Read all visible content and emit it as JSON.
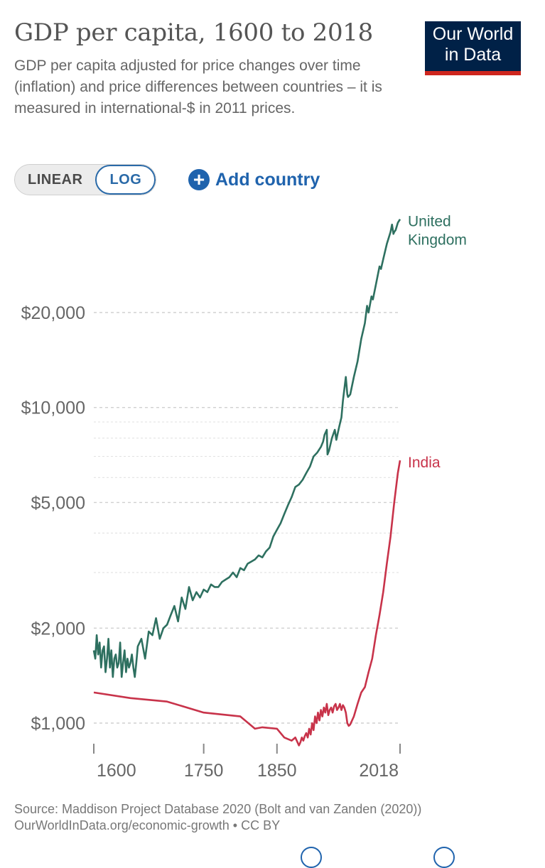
{
  "header": {
    "title": "GDP per capita, 1600 to 2018",
    "subtitle": "GDP per capita adjusted for price changes over time (inflation) and price differences between countries – it is measured in international-$ in 2011 prices.",
    "logo_line1": "Our World",
    "logo_line2": "in Data"
  },
  "controls": {
    "linear_label": "LINEAR",
    "log_label": "LOG",
    "active_scale": "LOG",
    "add_country_label": "Add country",
    "add_icon": "plus-circle-icon"
  },
  "colors": {
    "uk": "#2e7060",
    "india": "#c8334a",
    "accent": "#1f63ad",
    "logo_bg": "#002147",
    "logo_bar": "#ce261e"
  },
  "chart_data": {
    "type": "line",
    "title": "GDP per capita, 1600 to 2018",
    "xlabel": "",
    "ylabel": "",
    "y_scale": "log",
    "xlim": [
      1600,
      2018
    ],
    "ylim": [
      850,
      42000
    ],
    "x_ticks": [
      1600,
      1750,
      1850,
      2018
    ],
    "x_tick_labels": [
      "1600",
      "1750",
      "1850",
      "2018"
    ],
    "y_ticks": [
      1000,
      2000,
      5000,
      10000,
      20000
    ],
    "y_tick_labels": [
      "$1,000",
      "$2,000",
      "$5,000",
      "$10,000",
      "$20,000"
    ],
    "minor_gridlines": [
      3000,
      4000,
      6000,
      7000,
      8000,
      9000
    ],
    "legend": "end-of-line labels",
    "series": [
      {
        "name": "United Kingdom",
        "label_lines": [
          "United",
          "Kingdom"
        ],
        "x": [
          1600,
          1602,
          1604,
          1606,
          1608,
          1610,
          1612,
          1614,
          1616,
          1618,
          1620,
          1622,
          1624,
          1626,
          1628,
          1630,
          1632,
          1634,
          1636,
          1638,
          1640,
          1642,
          1644,
          1646,
          1648,
          1650,
          1652,
          1654,
          1656,
          1658,
          1660,
          1665,
          1670,
          1675,
          1680,
          1685,
          1690,
          1695,
          1700,
          1705,
          1710,
          1715,
          1720,
          1725,
          1730,
          1735,
          1740,
          1745,
          1750,
          1755,
          1760,
          1765,
          1770,
          1775,
          1780,
          1785,
          1790,
          1795,
          1800,
          1805,
          1810,
          1815,
          1820,
          1825,
          1830,
          1835,
          1840,
          1845,
          1850,
          1855,
          1860,
          1865,
          1870,
          1875,
          1880,
          1885,
          1890,
          1895,
          1900,
          1905,
          1910,
          1913,
          1915,
          1918,
          1919,
          1921,
          1925,
          1929,
          1931,
          1935,
          1938,
          1940,
          1943,
          1944,
          1946,
          1947,
          1950,
          1955,
          1960,
          1965,
          1970,
          1973,
          1975,
          1979,
          1981,
          1985,
          1990,
          1992,
          1995,
          2000,
          2005,
          2007,
          2009,
          2010,
          2012,
          2015,
          2018
        ],
        "values": [
          1700,
          1600,
          1900,
          1650,
          1800,
          1500,
          1700,
          1750,
          1450,
          1600,
          1850,
          1500,
          1700,
          1400,
          1600,
          1650,
          1500,
          1550,
          1800,
          1400,
          1550,
          1700,
          1450,
          1600,
          1500,
          1550,
          1650,
          1500,
          1400,
          1550,
          1750,
          1850,
          1600,
          1950,
          1900,
          2150,
          1850,
          2000,
          2050,
          2200,
          2350,
          2100,
          2500,
          2300,
          2700,
          2450,
          2600,
          2500,
          2650,
          2600,
          2750,
          2700,
          2700,
          2800,
          2850,
          2900,
          3000,
          2900,
          3100,
          3050,
          3200,
          3250,
          3300,
          3400,
          3350,
          3500,
          3600,
          3900,
          4100,
          4300,
          4600,
          4900,
          5200,
          5600,
          5700,
          5900,
          6200,
          6500,
          7000,
          7200,
          7500,
          7800,
          8200,
          8500,
          7100,
          7300,
          8000,
          8500,
          7900,
          8700,
          9300,
          10500,
          12000,
          12500,
          11000,
          10800,
          11000,
          12500,
          14000,
          16500,
          18500,
          21000,
          20000,
          22500,
          22000,
          24500,
          28000,
          27500,
          29500,
          33000,
          36000,
          38000,
          35500,
          36000,
          36500,
          38500,
          39500
        ]
      },
      {
        "name": "India",
        "label_lines": [
          "India"
        ],
        "x": [
          1600,
          1650,
          1700,
          1750,
          1800,
          1820,
          1830,
          1850,
          1860,
          1870,
          1875,
          1880,
          1882,
          1884,
          1886,
          1888,
          1890,
          1892,
          1894,
          1896,
          1898,
          1900,
          1902,
          1904,
          1906,
          1908,
          1910,
          1912,
          1914,
          1916,
          1918,
          1920,
          1922,
          1924,
          1926,
          1928,
          1930,
          1932,
          1934,
          1936,
          1938,
          1940,
          1942,
          1944,
          1946,
          1948,
          1950,
          1955,
          1960,
          1965,
          1970,
          1975,
          1980,
          1985,
          1990,
          1995,
          2000,
          2005,
          2010,
          2015,
          2018
        ],
        "values": [
          1250,
          1200,
          1170,
          1080,
          1050,
          960,
          970,
          960,
          900,
          880,
          900,
          850,
          870,
          900,
          880,
          910,
          930,
          900,
          960,
          920,
          1000,
          950,
          1050,
          1000,
          1080,
          1020,
          1100,
          1050,
          1120,
          1080,
          1150,
          1060,
          1100,
          1120,
          1080,
          1130,
          1150,
          1100,
          1120,
          1150,
          1100,
          1140,
          1120,
          1080,
          1000,
          980,
          990,
          1050,
          1150,
          1250,
          1300,
          1450,
          1600,
          1900,
          2200,
          2600,
          3200,
          3900,
          5000,
          6200,
          6800
        ]
      }
    ]
  },
  "source": {
    "line1": "Source: Maddison Project Database 2020 (Bolt and van Zanden (2020))",
    "line2": "OurWorldInData.org/economic-growth • CC BY"
  }
}
